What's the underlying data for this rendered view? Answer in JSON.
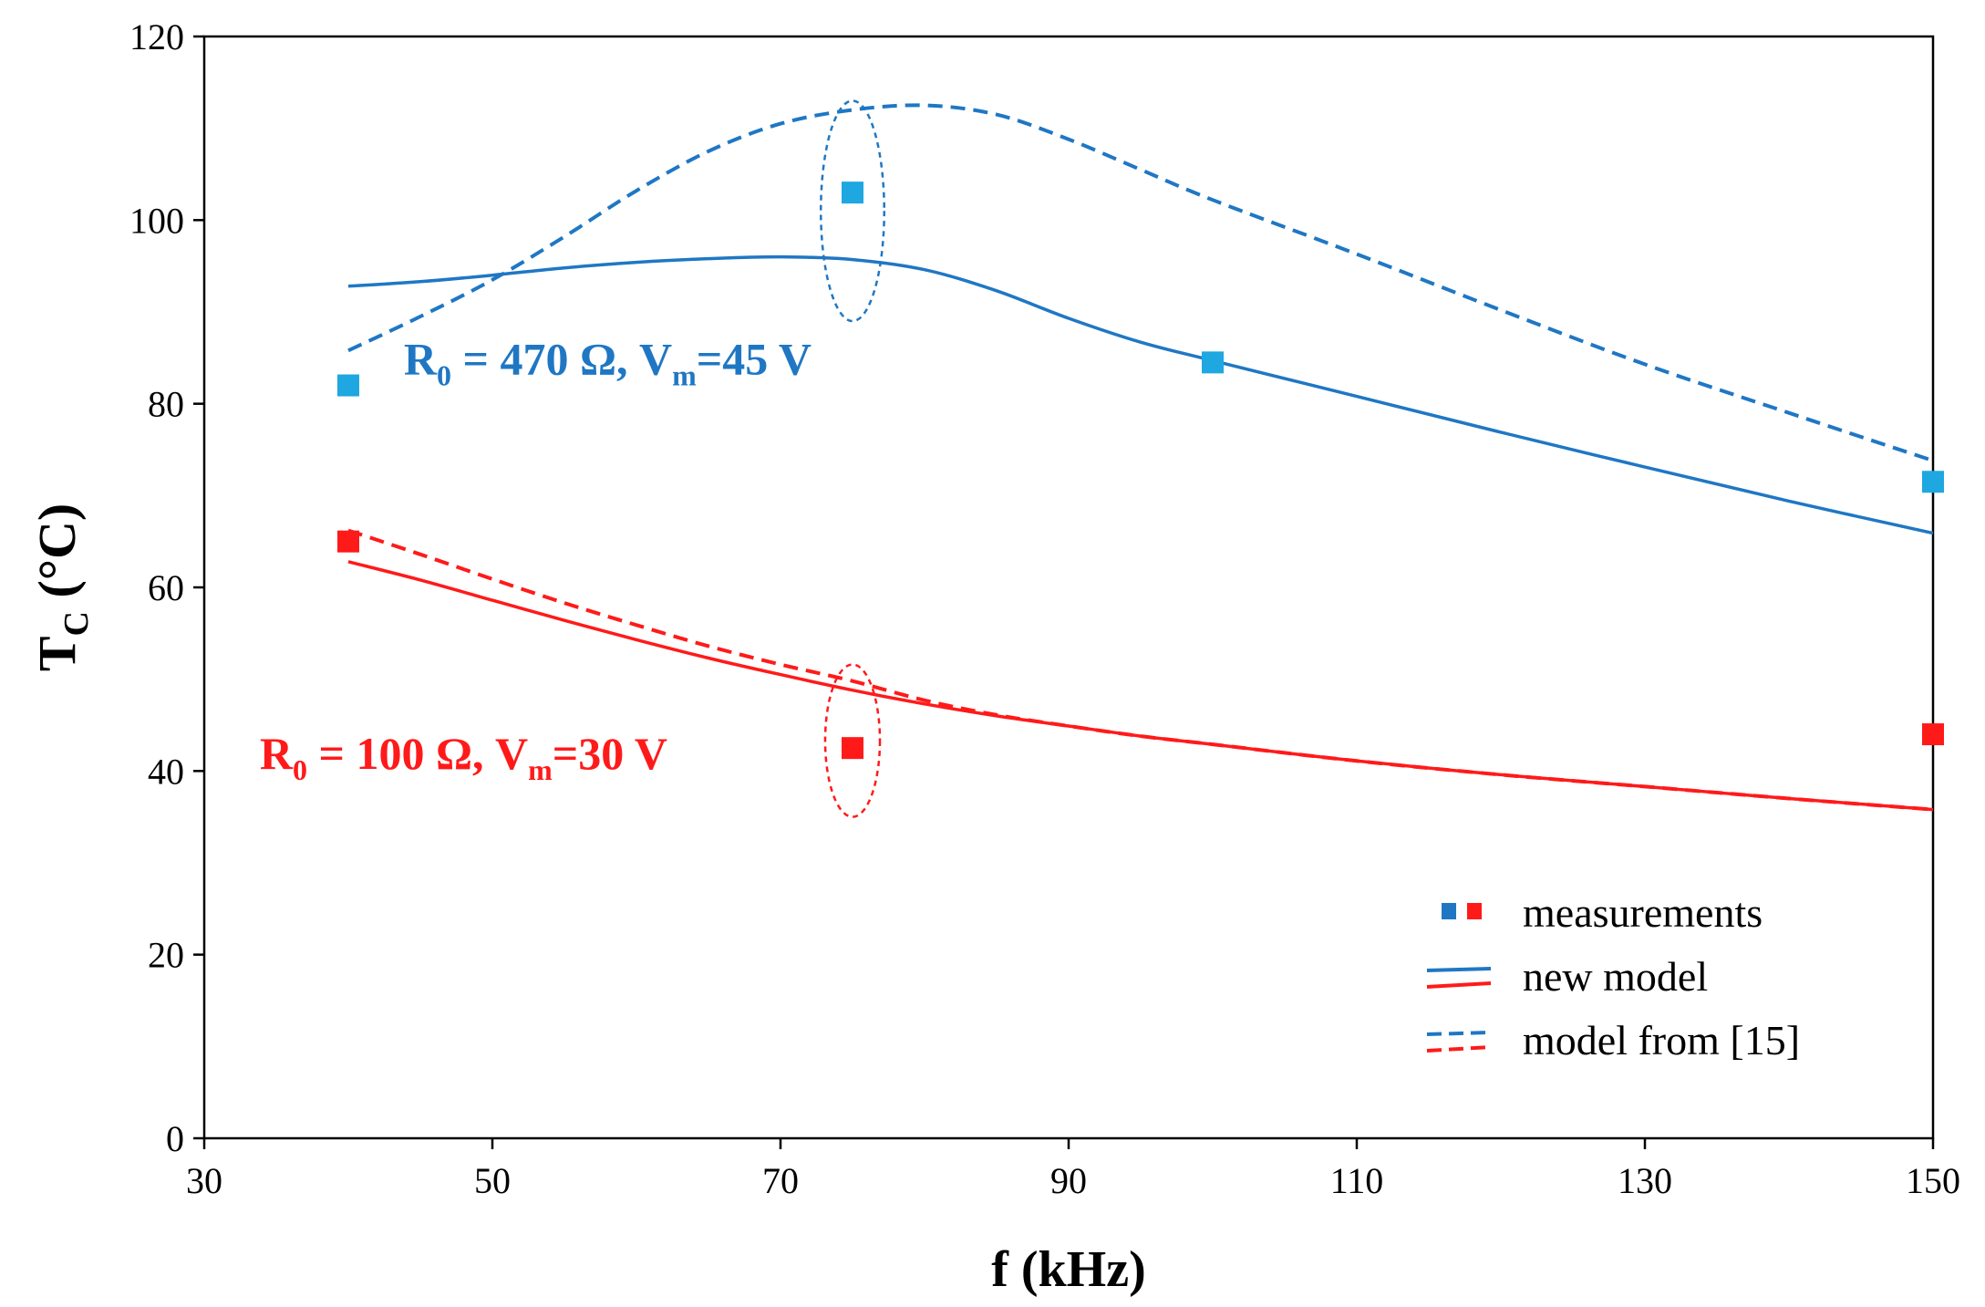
{
  "chart_data": {
    "type": "line",
    "xlabel": "f (kHz)",
    "ylabel_main": "T",
    "ylabel_sub": "C",
    "ylabel_unit": " (°C)",
    "xlim": [
      30,
      150
    ],
    "ylim": [
      0,
      120
    ],
    "xticks": [
      30,
      50,
      70,
      90,
      110,
      130,
      150
    ],
    "yticks": [
      0,
      20,
      40,
      60,
      80,
      100,
      120
    ],
    "colors": {
      "blue": "#1f77c4",
      "lightblue": "#1ea7e0",
      "red": "#ff1a1a"
    },
    "series": [
      {
        "name": "new model (R0 = 470 Ω)",
        "group": "blue",
        "style": "solid",
        "x": [
          40,
          45,
          50,
          55,
          60,
          65,
          70,
          75,
          80,
          85,
          90,
          95,
          100,
          110,
          120,
          130,
          140,
          150
        ],
        "y": [
          92.8,
          93.3,
          94.0,
          94.8,
          95.4,
          95.8,
          96.0,
          95.7,
          94.6,
          92.3,
          89.3,
          86.7,
          84.7,
          80.8,
          76.9,
          73.1,
          69.4,
          65.9
        ]
      },
      {
        "name": "model from [15] (R0 = 470 Ω)",
        "group": "blue",
        "style": "dashed",
        "x": [
          40,
          45,
          50,
          55,
          60,
          65,
          70,
          75,
          80,
          85,
          90,
          95,
          100,
          110,
          120,
          130,
          140,
          150
        ],
        "y": [
          85.8,
          89.5,
          93.5,
          98.2,
          103.2,
          107.5,
          110.5,
          112.0,
          112.5,
          111.5,
          108.8,
          105.5,
          102.2,
          96.3,
          90.2,
          84.3,
          79.0,
          73.8
        ]
      },
      {
        "name": "new model (R0 = 100 Ω)",
        "group": "red",
        "style": "solid",
        "x": [
          40,
          45,
          50,
          55,
          60,
          65,
          70,
          75,
          80,
          85,
          90,
          95,
          100,
          110,
          120,
          130,
          140,
          150
        ],
        "y": [
          62.8,
          60.8,
          58.6,
          56.4,
          54.3,
          52.3,
          50.5,
          48.8,
          47.3,
          46.0,
          44.9,
          43.8,
          42.9,
          41.1,
          39.6,
          38.3,
          37.0,
          35.8
        ]
      },
      {
        "name": "model from [15] (R0 = 100 Ω)",
        "group": "red",
        "style": "dashed",
        "x": [
          40,
          45,
          50,
          55,
          60,
          65,
          70,
          75,
          80,
          85,
          90,
          95,
          100,
          110,
          120,
          130,
          140,
          150
        ],
        "y": [
          66.2,
          63.6,
          60.9,
          58.3,
          55.9,
          53.6,
          51.6,
          49.8,
          47.7,
          46.1,
          44.9,
          43.8,
          42.9,
          41.1,
          39.6,
          38.3,
          37.0,
          35.8
        ]
      },
      {
        "name": "measurements (R0 = 470 Ω)",
        "group": "lightblue",
        "style": "markers",
        "x": [
          40,
          75,
          100,
          150
        ],
        "y": [
          82.0,
          103.0,
          84.5,
          71.5
        ]
      },
      {
        "name": "measurements (R0 = 100 Ω)",
        "group": "red",
        "style": "markers",
        "x": [
          40,
          75,
          150
        ],
        "y": [
          65.0,
          42.5,
          44.0
        ]
      }
    ],
    "ellipses": [
      {
        "group": "blue",
        "cx": 75,
        "cy": 101,
        "rx": 2.2,
        "ry": 12
      },
      {
        "group": "red",
        "cx": 75,
        "cy": 43.3,
        "rx": 1.9,
        "ry": 8.3
      }
    ],
    "annotations": [
      {
        "group": "blue",
        "x": 58,
        "y": 85,
        "parts": [
          "R",
          "0",
          " = 470 Ω, V",
          "m",
          "=45 V"
        ]
      },
      {
        "group": "red",
        "x": 48,
        "y": 42,
        "parts": [
          "R",
          "0",
          " = 100 Ω, V",
          "m",
          "=30 V"
        ]
      }
    ],
    "legend": {
      "position": "bottom-right",
      "entries": [
        {
          "label": "measurements",
          "style": "markers"
        },
        {
          "label": "new model",
          "style": "solid"
        },
        {
          "label": "model from [15]",
          "style": "dashed"
        }
      ]
    }
  }
}
